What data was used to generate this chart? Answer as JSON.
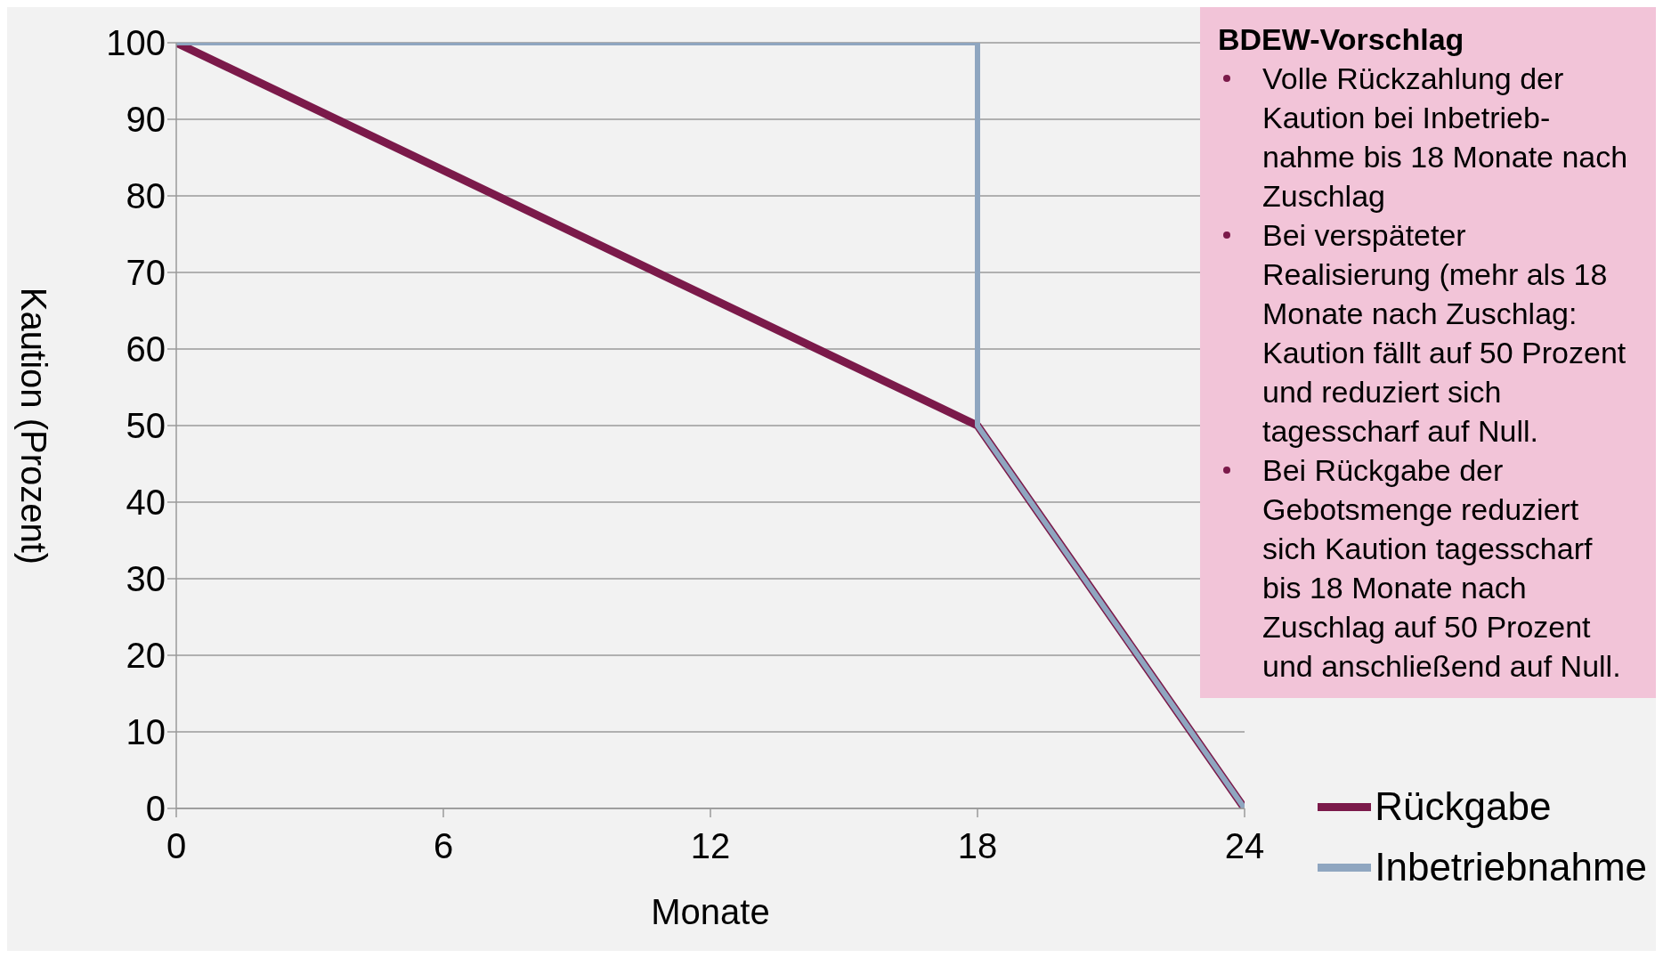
{
  "chart_data": {
    "type": "line",
    "xlabel": "Monate",
    "ylabel": "Kaution (Prozent)",
    "x": [
      0,
      18,
      24
    ],
    "series": [
      {
        "name": "Rückgabe",
        "color": "#7b1a4a",
        "values": [
          100,
          50,
          0
        ]
      },
      {
        "name": "Inbetriebnahme",
        "color": "#8fa6c0",
        "x": [
          0,
          18,
          18,
          24
        ],
        "values": [
          100,
          100,
          50,
          0
        ]
      }
    ],
    "xlim": [
      0,
      24
    ],
    "xticks": [
      0,
      6,
      12,
      18,
      24
    ],
    "ylim": [
      0,
      100
    ],
    "yticks": [
      0,
      10,
      20,
      30,
      40,
      50,
      60,
      70,
      80,
      90,
      100
    ],
    "grid": "y",
    "legend": "bottom right",
    "marker": "none",
    "line_style": "solid",
    "annotations": [
      "BDEW-Vorschlag",
      "Volle Rückzahlung der Kaution bei Inbetrieb-nahme bis 18 Monate nach Zuschlag",
      "Bei verspäteter Realisierung (mehr als 18 Monate nach Zuschlag: Kaution fällt auf 50 Prozent und reduziert sich tagesscharf auf Null.",
      "Bei Rückgabe der Gebotsmenge reduziert sich Kaution tagesscharf bis 18 Monate nach Zuschlag auf 50 Prozent und anschließend auf Null."
    ]
  }
}
